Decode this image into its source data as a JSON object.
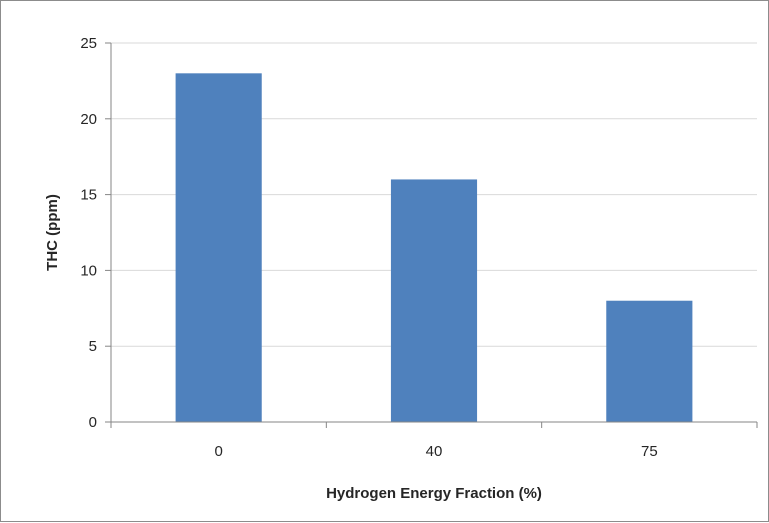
{
  "chart_data": {
    "type": "bar",
    "title": "",
    "xlabel": "Hydrogen Energy Fraction (%)",
    "ylabel": "THC (ppm)",
    "categories": [
      "0",
      "40",
      "75"
    ],
    "values": [
      23,
      16,
      8
    ],
    "ylim": [
      0,
      25
    ],
    "yticks": [
      0,
      5,
      10,
      15,
      20,
      25
    ],
    "grid": "horizontal",
    "legend": "none",
    "bar_color": "#4f81bd",
    "grid_color": "#d9d9d9",
    "axis_color": "#868686"
  }
}
